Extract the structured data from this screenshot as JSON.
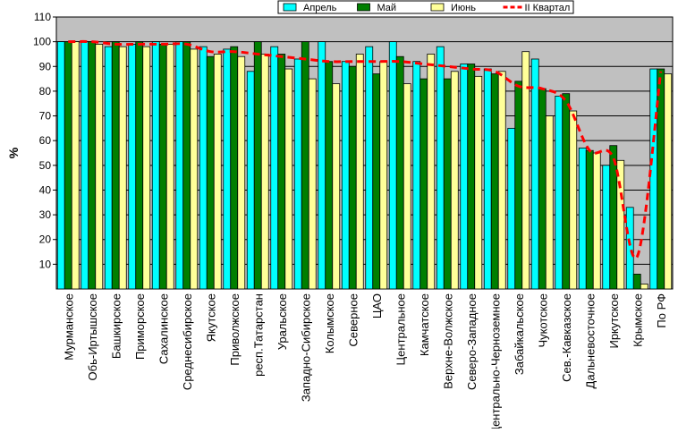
{
  "chart_data": {
    "type": "bar",
    "title": "",
    "xlabel": "",
    "ylabel": "%",
    "ylim": [
      0,
      110
    ],
    "yticks": [
      10,
      20,
      30,
      40,
      50,
      60,
      70,
      80,
      90,
      100,
      110
    ],
    "grid": true,
    "legend_position": "top",
    "categories": [
      "Мурманское",
      "Обь-Иртышское",
      "Башкирское",
      "Приморское",
      "Сахалинское",
      "Среднесибирское",
      "Якутское",
      "Приволжское",
      "респ.Татарстан",
      "Уральское",
      "Западно-Сибирское",
      "Колымское",
      "Северное",
      "ЦАО",
      "Центральное",
      "Камчатское",
      "Верхне-Волжское",
      "Северо-Западное",
      "Центрально-Черноземное",
      "Забайкальское",
      "Чукотское",
      "Сев.-Кавказское",
      "Дальневосточное",
      "Иркутское",
      "Крымское",
      "По РФ"
    ],
    "series": [
      {
        "name": "Апрель",
        "type": "bar",
        "color": "#00ffff",
        "values": [
          100,
          100,
          98,
          99,
          100,
          100,
          98,
          97,
          88,
          98,
          93,
          100,
          92,
          98,
          100,
          92,
          98,
          91,
          89,
          65,
          93,
          78,
          57,
          50,
          33,
          89
        ]
      },
      {
        "name": "Май",
        "type": "bar",
        "color": "#007f00",
        "values": [
          100,
          100,
          100,
          100,
          99,
          100,
          94,
          98,
          100,
          95,
          100,
          92,
          90,
          87,
          94,
          85,
          85,
          91,
          87,
          84,
          81,
          79,
          56,
          58,
          6,
          89
        ]
      },
      {
        "name": "Июнь",
        "type": "bar",
        "color": "#ffff99",
        "values": [
          100,
          99,
          98,
          98,
          99,
          97,
          95,
          94,
          95,
          89,
          85,
          83,
          95,
          92,
          83,
          95,
          88,
          86,
          88,
          96,
          70,
          72,
          55,
          52,
          2,
          87
        ]
      },
      {
        "name": "II Квартал",
        "type": "line",
        "color": "#ff0000",
        "values": [
          100,
          100,
          99,
          99,
          99,
          99,
          96,
          96,
          95,
          94,
          93,
          92,
          92,
          92,
          92,
          91,
          90,
          89,
          88,
          82,
          81,
          76,
          56,
          53,
          13,
          88
        ]
      }
    ]
  }
}
